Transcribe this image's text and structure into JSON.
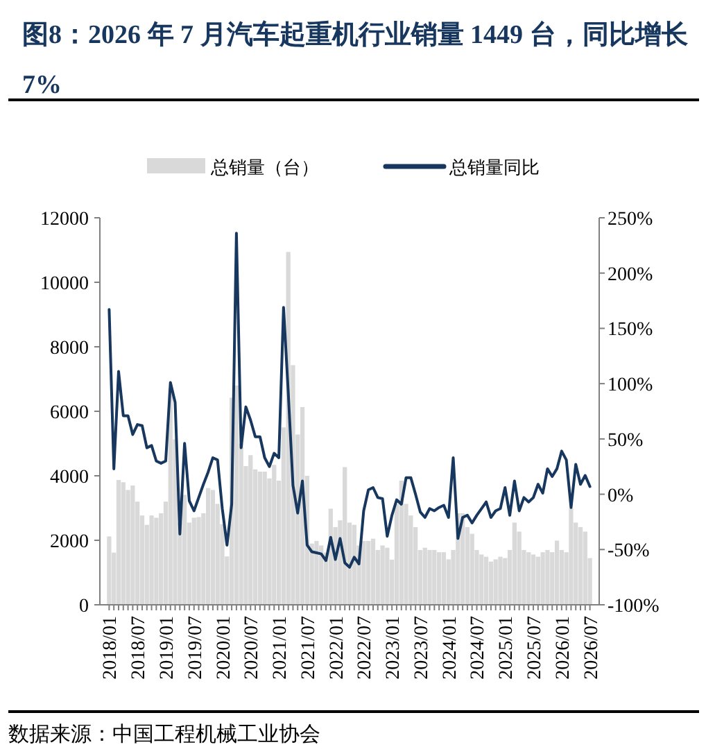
{
  "chart_data": {
    "type": "bar",
    "title": "图8：2026 年 7 月汽车起重机行业销量 1449 台，同比增长 7%",
    "categories": [
      "2018/01",
      null,
      null,
      null,
      null,
      null,
      "2018/07",
      null,
      null,
      null,
      null,
      null,
      "2019/01",
      null,
      null,
      null,
      null,
      null,
      "2019/07",
      null,
      null,
      null,
      null,
      null,
      "2020/01",
      null,
      null,
      null,
      null,
      null,
      "2020/07",
      null,
      null,
      null,
      null,
      null,
      "2021/01",
      null,
      null,
      null,
      null,
      null,
      "2021/07",
      null,
      null,
      null,
      null,
      null,
      "2022/01",
      null,
      null,
      null,
      null,
      null,
      "2022/07",
      null,
      null,
      null,
      null,
      null,
      "2023/01",
      null,
      null,
      null,
      null,
      null,
      "2023/07",
      null,
      null,
      null,
      null,
      null,
      "2024/01",
      null,
      null,
      null,
      null,
      null,
      "2024/07",
      null,
      null,
      null,
      null,
      null,
      "2025/01",
      null,
      null,
      null,
      null,
      null,
      "2025/07",
      null,
      null,
      null,
      null,
      null,
      "2026/01",
      null,
      null,
      null,
      null,
      null,
      "2026/07"
    ],
    "series": [
      {
        "name": "总销量（台）",
        "color": "#d9d9d9",
        "values": [
          2120,
          1620,
          3870,
          3800,
          3560,
          3700,
          3200,
          2770,
          2480,
          2770,
          2700,
          2840,
          3200,
          6710,
          5130,
          2550,
          3410,
          2550,
          2700,
          2720,
          2840,
          3620,
          3560,
          3130,
          2500,
          1500,
          6420,
          6800,
          5000,
          4300,
          4640,
          4200,
          4130,
          4130,
          3920,
          4340,
          3850,
          5500,
          10940,
          7430,
          5280,
          6130,
          4000,
          1900,
          1980,
          1840,
          1620,
          2980,
          2410,
          2620,
          4270,
          2550,
          2480,
          1840,
          1980,
          1980,
          2050,
          1700,
          1840,
          1770,
          1400,
          3130,
          3850,
          3130,
          2770,
          2410,
          1700,
          1770,
          1700,
          1700,
          1630,
          1630,
          1410,
          1700,
          2840,
          2840,
          2410,
          2200,
          1700,
          1560,
          1490,
          1340,
          1410,
          1490,
          1450,
          1700,
          2550,
          2270,
          1700,
          1630,
          1560,
          1490,
          1630,
          1700,
          1630,
          1990,
          1700,
          1630,
          3000,
          2550,
          2410,
          2270,
          1449
        ]
      },
      {
        "name": "总销量同比",
        "type": "line",
        "axis": "y2",
        "color": "#17375e",
        "values": [
          167,
          23,
          111,
          71,
          71,
          54,
          63,
          62,
          42,
          44,
          30,
          28,
          30,
          101,
          83,
          -36,
          46,
          -6,
          -15,
          -3,
          9,
          20,
          33,
          31,
          -13,
          -46,
          -9,
          236,
          42,
          79,
          67,
          52,
          52,
          33,
          25,
          37,
          33,
          169,
          92,
          8,
          -17,
          12,
          -46,
          -52,
          -53,
          -54,
          -60,
          -39,
          -59,
          -40,
          -62,
          -66,
          -57,
          -63,
          -15,
          4,
          6,
          -3,
          -4,
          -38,
          -19,
          -5,
          -9,
          15,
          15,
          0,
          -16,
          -21,
          -13,
          -15,
          -12,
          -10,
          -21,
          33,
          -40,
          -21,
          -19,
          -26,
          -19,
          -13,
          -7,
          -21,
          -15,
          -13,
          6,
          -19,
          12,
          -15,
          -3,
          -7,
          -3,
          9,
          1,
          23,
          16,
          23,
          39,
          31,
          -12,
          27,
          9,
          17,
          7
        ]
      }
    ],
    "ylim": [
      0,
      12000
    ],
    "yticks": [
      0,
      2000,
      4000,
      6000,
      8000,
      10000,
      12000
    ],
    "y2lim": [
      -100,
      250
    ],
    "y2ticks": [
      {
        "value": -100,
        "label": "-100%"
      },
      {
        "value": -50,
        "label": "-50%"
      },
      {
        "value": 0,
        "label": "0%"
      },
      {
        "value": 50,
        "label": "50%"
      },
      {
        "value": 100,
        "label": "100%"
      },
      {
        "value": 150,
        "label": "150%"
      },
      {
        "value": 200,
        "label": "200%"
      },
      {
        "value": 250,
        "label": "250%"
      }
    ],
    "legend": "top",
    "grid": false,
    "annotations": [
      "数据来源：中国工程机械工业协会"
    ]
  }
}
